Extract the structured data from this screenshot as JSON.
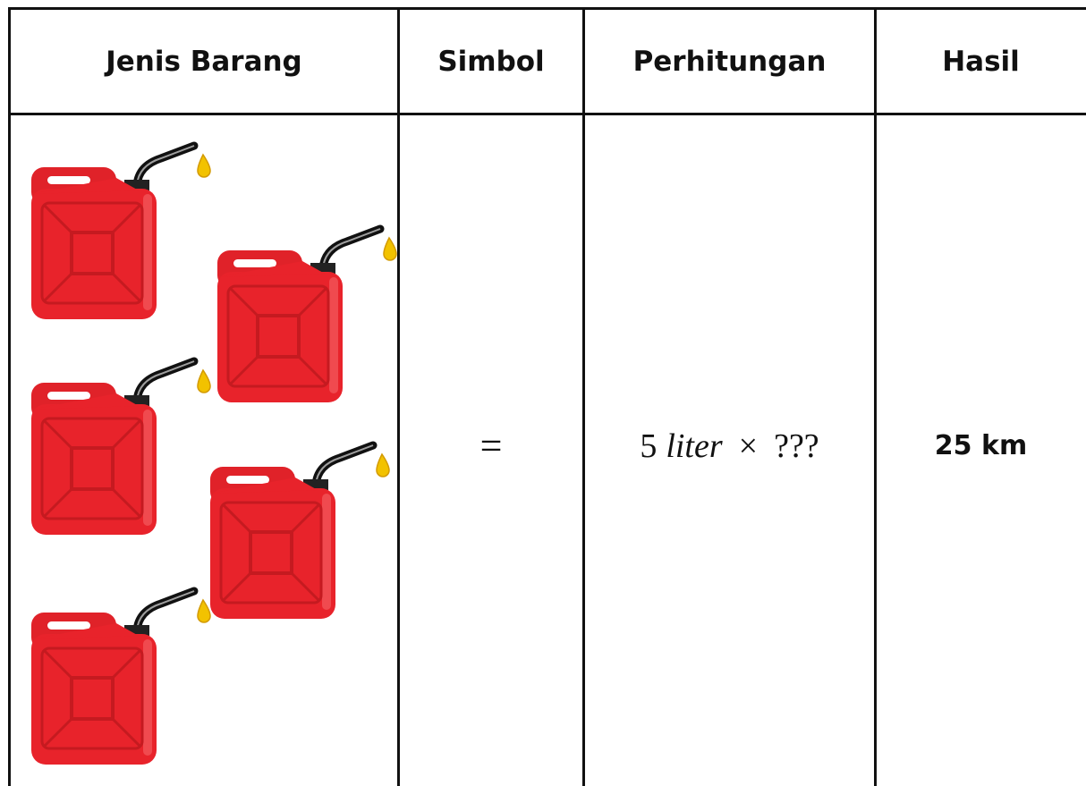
{
  "table": {
    "headers": [
      "Jenis Barang",
      "Simbol",
      "Perhitungan",
      "Hasil"
    ],
    "rows": [
      {
        "symbol": "=",
        "calculation": [
          "5",
          "liter",
          "×",
          "???"
        ],
        "result": "25 km"
      }
    ]
  }
}
